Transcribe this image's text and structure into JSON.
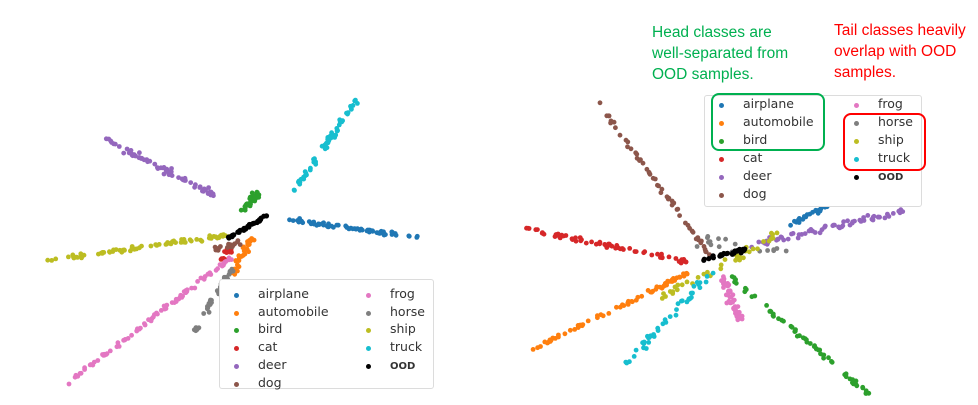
{
  "chart_data": [
    {
      "type": "scatter",
      "title": "",
      "xlabel": "",
      "ylabel": "",
      "grid": false,
      "axes_visible": false,
      "legend_position": "lower right",
      "legend": [
        "airplane",
        "automobile",
        "bird",
        "cat",
        "deer",
        "dog",
        "frog",
        "horse",
        "ship",
        "truck",
        "OOD"
      ],
      "series": [
        {
          "name": "airplane",
          "color": "#1f77b4",
          "ray": [
            [
              280,
              218
            ],
            [
              420,
              238
            ]
          ],
          "n": 70,
          "spread": 3
        },
        {
          "name": "automobile",
          "color": "#ff7f0e",
          "ray": [
            [
              232,
              275
            ],
            [
              252,
              238
            ]
          ],
          "n": 30,
          "spread": 5
        },
        {
          "name": "bird",
          "color": "#2ca02c",
          "ray": [
            [
              243,
              212
            ],
            [
              258,
              192
            ]
          ],
          "n": 30,
          "spread": 6
        },
        {
          "name": "cat",
          "color": "#d62728",
          "ray": [
            [
              218,
              262
            ],
            [
              232,
              248
            ]
          ],
          "n": 14,
          "spread": 5
        },
        {
          "name": "deer",
          "color": "#9467bd",
          "ray": [
            [
              105,
              140
            ],
            [
              215,
              195
            ]
          ],
          "n": 70,
          "spread": 5
        },
        {
          "name": "dog",
          "color": "#8c564b",
          "ray": [
            [
              215,
              250
            ],
            [
              240,
              242
            ]
          ],
          "n": 18,
          "spread": 4
        },
        {
          "name": "frog",
          "color": "#e377c2",
          "ray": [
            [
              65,
              385
            ],
            [
              235,
              255
            ]
          ],
          "n": 85,
          "spread": 3
        },
        {
          "name": "horse",
          "color": "#7f7f7f",
          "ray": [
            [
              190,
              340
            ],
            [
              232,
              268
            ]
          ],
          "n": 45,
          "spread": 4
        },
        {
          "name": "ship",
          "color": "#bcbd22",
          "ray": [
            [
              38,
              262
            ],
            [
              230,
              235
            ]
          ],
          "n": 75,
          "spread": 3
        },
        {
          "name": "truck",
          "color": "#17becf",
          "ray": [
            [
              292,
              193
            ],
            [
              357,
              100
            ]
          ],
          "n": 60,
          "spread": 4
        },
        {
          "name": "OOD",
          "color": "#000000",
          "ray": [
            [
              225,
              240
            ],
            [
              268,
              215
            ]
          ],
          "n": 35,
          "spread": 1.5
        }
      ]
    },
    {
      "type": "scatter",
      "title": "",
      "xlabel": "",
      "ylabel": "",
      "grid": false,
      "axes_visible": false,
      "legend_position": "upper right",
      "legend": [
        "airplane",
        "automobile",
        "bird",
        "cat",
        "deer",
        "dog",
        "frog",
        "horse",
        "ship",
        "truck",
        "OOD"
      ],
      "series": [
        {
          "name": "airplane",
          "color": "#1f77b4",
          "ray": [
            [
              790,
              225
            ],
            [
              842,
              198
            ]
          ],
          "n": 40,
          "spread": 3
        },
        {
          "name": "automobile",
          "color": "#ff7f0e",
          "ray": [
            [
              530,
              350
            ],
            [
              690,
              272
            ]
          ],
          "n": 70,
          "spread": 3
        },
        {
          "name": "bird",
          "color": "#2ca02c",
          "ray": [
            [
              730,
              275
            ],
            [
              872,
              397
            ]
          ],
          "n": 65,
          "spread": 4
        },
        {
          "name": "cat",
          "color": "#d62728",
          "ray": [
            [
              520,
              228
            ],
            [
              690,
              262
            ]
          ],
          "n": 65,
          "spread": 4
        },
        {
          "name": "deer",
          "color": "#9467bd",
          "ray": [
            [
              750,
              245
            ],
            [
              908,
              210
            ]
          ],
          "n": 65,
          "spread": 5
        },
        {
          "name": "dog",
          "color": "#8c564b",
          "ray": [
            [
              598,
              103
            ],
            [
              710,
              255
            ]
          ],
          "n": 55,
          "spread": 3
        },
        {
          "name": "frog",
          "color": "#e377c2",
          "ray": [
            [
              722,
              275
            ],
            [
              740,
              320
            ]
          ],
          "n": 45,
          "spread": 7
        },
        {
          "name": "horse",
          "color": "#7f7f7f",
          "ray": [
            [
              690,
              240
            ],
            [
              790,
              255
            ]
          ],
          "n": 20,
          "spread": 12
        },
        {
          "name": "ship",
          "color": "#bcbd22",
          "ray": [
            [
              660,
              300
            ],
            [
              780,
              232
            ]
          ],
          "n": 45,
          "spread": 6
        },
        {
          "name": "truck",
          "color": "#17becf",
          "ray": [
            [
              625,
              365
            ],
            [
              712,
              272
            ]
          ],
          "n": 45,
          "spread": 6
        },
        {
          "name": "OOD",
          "color": "#000000",
          "ray": [
            [
              703,
              260
            ],
            [
              745,
              250
            ]
          ],
          "n": 30,
          "spread": 3
        }
      ]
    }
  ],
  "left_legend": {
    "col1": [
      {
        "label": "airplane",
        "color": "#1f77b4"
      },
      {
        "label": "automobile",
        "color": "#ff7f0e"
      },
      {
        "label": "bird",
        "color": "#2ca02c"
      },
      {
        "label": "cat",
        "color": "#d62728"
      },
      {
        "label": "deer",
        "color": "#9467bd"
      },
      {
        "label": "dog",
        "color": "#8c564b"
      }
    ],
    "col2": [
      {
        "label": "frog",
        "color": "#e377c2"
      },
      {
        "label": "horse",
        "color": "#7f7f7f"
      },
      {
        "label": "ship",
        "color": "#bcbd22"
      },
      {
        "label": "truck",
        "color": "#17becf"
      },
      {
        "label": "OOD",
        "color": "#000000"
      }
    ]
  },
  "right_legend": {
    "col1": [
      {
        "label": "airplane",
        "color": "#1f77b4"
      },
      {
        "label": "automobile",
        "color": "#ff7f0e"
      },
      {
        "label": "bird",
        "color": "#2ca02c"
      },
      {
        "label": "cat",
        "color": "#d62728"
      },
      {
        "label": "deer",
        "color": "#9467bd"
      },
      {
        "label": "dog",
        "color": "#8c564b"
      }
    ],
    "col2": [
      {
        "label": "frog",
        "color": "#e377c2"
      },
      {
        "label": "horse",
        "color": "#7f7f7f"
      },
      {
        "label": "ship",
        "color": "#bcbd22"
      },
      {
        "label": "truck",
        "color": "#17becf"
      },
      {
        "label": "OOD",
        "color": "#000000"
      }
    ]
  },
  "annotations": {
    "head": {
      "lines": [
        "Head classes are",
        "well-separated from",
        "OOD samples."
      ],
      "color": "#00b050"
    },
    "tail": {
      "lines": [
        "Tail classes heavily",
        "overlap with OOD",
        "samples."
      ],
      "color": "#ff0000"
    }
  }
}
